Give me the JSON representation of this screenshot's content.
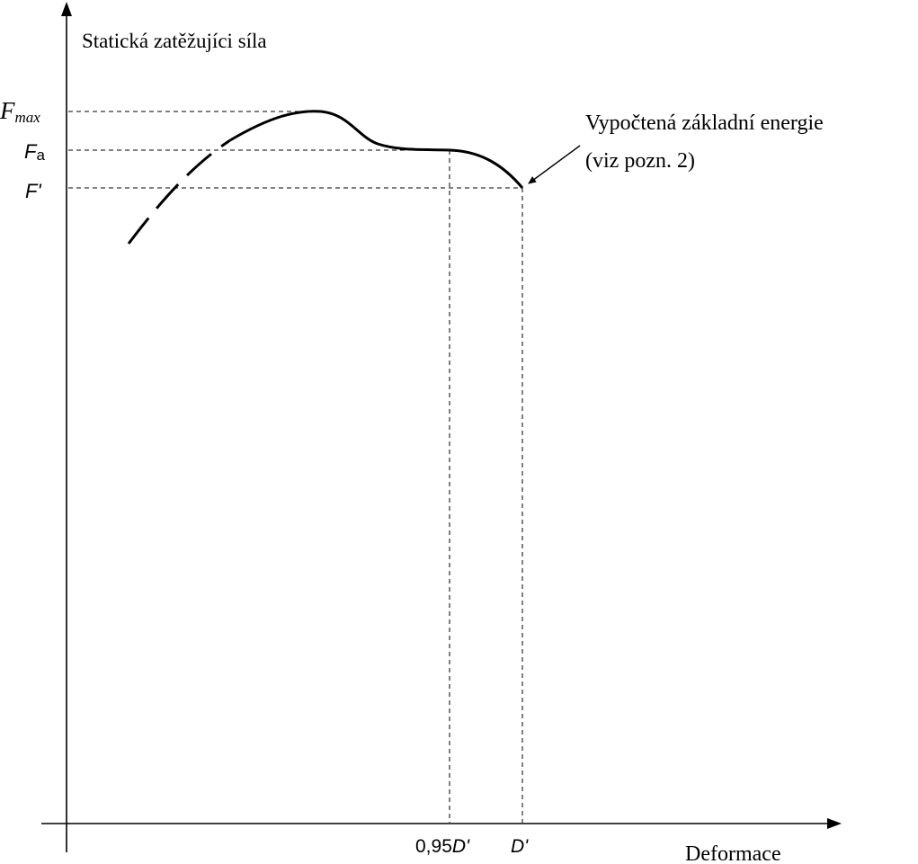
{
  "chart_data": {
    "type": "line",
    "ylabel": "Statická zatěžujíci síla",
    "xlabel": "Deformace",
    "y_ticks": {
      "fmax": {
        "main": "F",
        "sub": "max"
      },
      "fa": {
        "main": "F",
        "sub": "a"
      },
      "fprime": {
        "main": "F'"
      }
    },
    "x_ticks": {
      "d095": {
        "prefix": "0,95",
        "main": "D'"
      },
      "dprime": {
        "main": "D'"
      }
    },
    "annotation": {
      "line1": "Vypočtená základní energie",
      "line2": "(viz pozn. 2)"
    },
    "series": [
      {
        "style": "dashed-then-solid",
        "x": [
          0.13,
          0.38,
          0.56,
          0.66,
          0.8,
          0.95,
          1.0
        ],
        "y": [
          0.77,
          0.96,
          1.0,
          0.94,
          0.92,
          0.91,
          0.86
        ]
      }
    ],
    "legend": "none",
    "grid": false
  }
}
